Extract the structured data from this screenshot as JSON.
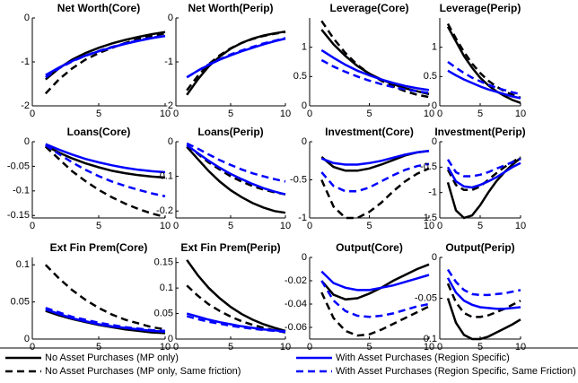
{
  "chart_data": [
    {
      "type": "line",
      "title": "Net Worth(Core)",
      "x": [
        1,
        2,
        3,
        4,
        5,
        6,
        7,
        8,
        9,
        10
      ],
      "xlim": [
        0,
        10
      ],
      "xticks": [
        0,
        5,
        10
      ],
      "ylim": [
        -2,
        0
      ],
      "yticks": [
        -2,
        -1,
        0
      ],
      "series": [
        {
          "values": [
            -1.4,
            -1.15,
            -0.95,
            -0.8,
            -0.68,
            -0.58,
            -0.5,
            -0.43,
            -0.37,
            -0.32
          ]
        },
        {
          "values": [
            -1.72,
            -1.4,
            -1.15,
            -0.95,
            -0.8,
            -0.68,
            -0.57,
            -0.48,
            -0.41,
            -0.35
          ]
        },
        {
          "values": [
            -1.3,
            -1.13,
            -0.98,
            -0.86,
            -0.76,
            -0.67,
            -0.59,
            -0.52,
            -0.46,
            -0.41
          ]
        },
        {
          "values": [
            -1.35,
            -1.15,
            -0.99,
            -0.86,
            -0.75,
            -0.66,
            -0.58,
            -0.51,
            -0.45,
            -0.4
          ]
        }
      ]
    },
    {
      "type": "line",
      "title": "Net Worth(Perip)",
      "x": [
        1,
        2,
        3,
        4,
        5,
        6,
        7,
        8,
        9,
        10
      ],
      "xlim": [
        0,
        10
      ],
      "xticks": [
        0,
        5,
        10
      ],
      "ylim": [
        -2,
        0
      ],
      "yticks": [
        -2,
        -1,
        0
      ],
      "series": [
        {
          "values": [
            -1.75,
            -1.4,
            -1.1,
            -0.88,
            -0.7,
            -0.57,
            -0.47,
            -0.4,
            -0.35,
            -0.31
          ]
        },
        {
          "values": [
            -1.65,
            -1.32,
            -1.05,
            -0.85,
            -0.69,
            -0.57,
            -0.48,
            -0.41,
            -0.36,
            -0.32
          ]
        },
        {
          "values": [
            -1.35,
            -1.2,
            -1.07,
            -0.95,
            -0.85,
            -0.76,
            -0.68,
            -0.6,
            -0.53,
            -0.47
          ]
        },
        {
          "values": [
            -1.35,
            -1.2,
            -1.06,
            -0.94,
            -0.83,
            -0.74,
            -0.66,
            -0.58,
            -0.52,
            -0.46
          ]
        }
      ]
    },
    {
      "type": "line",
      "title": "Leverage(Core)",
      "x": [
        1,
        2,
        3,
        4,
        5,
        6,
        7,
        8,
        9,
        10
      ],
      "xlim": [
        0,
        10
      ],
      "xticks": [
        0,
        5,
        10
      ],
      "ylim": [
        0,
        1.5
      ],
      "yticks": [
        0,
        0.5,
        1
      ],
      "series": [
        {
          "values": [
            1.3,
            1.05,
            0.85,
            0.68,
            0.55,
            0.45,
            0.37,
            0.3,
            0.25,
            0.2
          ]
        },
        {
          "values": [
            1.45,
            1.15,
            0.9,
            0.7,
            0.55,
            0.43,
            0.33,
            0.25,
            0.19,
            0.15
          ]
        },
        {
          "values": [
            0.95,
            0.82,
            0.7,
            0.6,
            0.52,
            0.45,
            0.39,
            0.34,
            0.3,
            0.27
          ]
        },
        {
          "values": [
            0.78,
            0.67,
            0.58,
            0.5,
            0.43,
            0.37,
            0.32,
            0.28,
            0.25,
            0.22
          ]
        }
      ]
    },
    {
      "type": "line",
      "title": "Leverage(Perip)",
      "x": [
        1,
        2,
        3,
        4,
        5,
        6,
        7,
        8,
        9,
        10
      ],
      "xlim": [
        0,
        10
      ],
      "xticks": [
        0,
        5,
        10
      ],
      "ylim": [
        0,
        1.5
      ],
      "yticks": [
        0,
        0.5,
        1
      ],
      "series": [
        {
          "values": [
            1.35,
            1.1,
            0.85,
            0.65,
            0.48,
            0.35,
            0.25,
            0.17,
            0.1,
            0.05
          ]
        },
        {
          "values": [
            1.4,
            1.15,
            0.92,
            0.72,
            0.56,
            0.43,
            0.33,
            0.25,
            0.19,
            0.14
          ]
        },
        {
          "values": [
            0.6,
            0.52,
            0.45,
            0.39,
            0.33,
            0.28,
            0.24,
            0.2,
            0.16,
            0.13
          ]
        },
        {
          "values": [
            0.75,
            0.65,
            0.56,
            0.48,
            0.42,
            0.36,
            0.31,
            0.27,
            0.23,
            0.2
          ]
        }
      ]
    },
    {
      "type": "line",
      "title": "Loans(Core)",
      "x": [
        1,
        2,
        3,
        4,
        5,
        6,
        7,
        8,
        9,
        10
      ],
      "xlim": [
        0,
        10
      ],
      "xticks": [
        0,
        5,
        10
      ],
      "ylim": [
        -0.155,
        0
      ],
      "yticks": [
        -0.15,
        -0.1,
        -0.05,
        0
      ],
      "series": [
        {
          "values": [
            -0.008,
            -0.022,
            -0.034,
            -0.044,
            -0.052,
            -0.059,
            -0.064,
            -0.068,
            -0.071,
            -0.073
          ]
        },
        {
          "values": [
            -0.01,
            -0.035,
            -0.06,
            -0.08,
            -0.098,
            -0.113,
            -0.126,
            -0.137,
            -0.146,
            -0.153
          ]
        },
        {
          "values": [
            -0.005,
            -0.016,
            -0.026,
            -0.035,
            -0.042,
            -0.048,
            -0.053,
            -0.057,
            -0.06,
            -0.062
          ]
        },
        {
          "values": [
            -0.007,
            -0.025,
            -0.042,
            -0.057,
            -0.07,
            -0.081,
            -0.09,
            -0.098,
            -0.105,
            -0.111
          ]
        }
      ]
    },
    {
      "type": "line",
      "title": "Loans(Perip)",
      "x": [
        1,
        2,
        3,
        4,
        5,
        6,
        7,
        8,
        9,
        10
      ],
      "xlim": [
        0,
        10
      ],
      "xticks": [
        0,
        5,
        10
      ],
      "ylim": [
        -0.22,
        0
      ],
      "yticks": [
        -0.2,
        -0.1,
        0
      ],
      "series": [
        {
          "values": [
            -0.015,
            -0.05,
            -0.085,
            -0.115,
            -0.14,
            -0.16,
            -0.177,
            -0.19,
            -0.2,
            -0.205
          ]
        },
        {
          "values": [
            -0.01,
            -0.035,
            -0.06,
            -0.08,
            -0.1,
            -0.115,
            -0.128,
            -0.138,
            -0.146,
            -0.152
          ]
        },
        {
          "values": [
            -0.01,
            -0.033,
            -0.055,
            -0.075,
            -0.093,
            -0.108,
            -0.122,
            -0.134,
            -0.144,
            -0.152
          ]
        },
        {
          "values": [
            -0.005,
            -0.02,
            -0.037,
            -0.053,
            -0.067,
            -0.08,
            -0.091,
            -0.1,
            -0.108,
            -0.115
          ]
        }
      ]
    },
    {
      "type": "line",
      "title": "Investment(Core)",
      "x": [
        1,
        2,
        3,
        4,
        5,
        6,
        7,
        8,
        9,
        10
      ],
      "xlim": [
        0,
        10
      ],
      "xticks": [
        0,
        5,
        10
      ],
      "ylim": [
        -1,
        0
      ],
      "yticks": [
        -1,
        -0.5,
        0
      ],
      "series": [
        {
          "values": [
            -0.2,
            -0.33,
            -0.38,
            -0.38,
            -0.35,
            -0.3,
            -0.24,
            -0.18,
            -0.14,
            -0.12
          ]
        },
        {
          "values": [
            -0.5,
            -0.85,
            -1.0,
            -1.0,
            -0.92,
            -0.8,
            -0.65,
            -0.52,
            -0.42,
            -0.35
          ]
        },
        {
          "values": [
            -0.22,
            -0.28,
            -0.3,
            -0.3,
            -0.28,
            -0.25,
            -0.21,
            -0.17,
            -0.14,
            -0.12
          ]
        },
        {
          "values": [
            -0.4,
            -0.58,
            -0.65,
            -0.65,
            -0.6,
            -0.52,
            -0.44,
            -0.37,
            -0.32,
            -0.29
          ]
        }
      ]
    },
    {
      "type": "line",
      "title": "Investment(Perip)",
      "x": [
        1,
        2,
        3,
        4,
        5,
        6,
        7,
        8,
        9,
        10
      ],
      "xlim": [
        0,
        10
      ],
      "xticks": [
        0,
        5,
        10
      ],
      "ylim": [
        -1.5,
        0
      ],
      "yticks": [
        -1.5,
        -1,
        -0.5,
        0
      ],
      "series": [
        {
          "values": [
            -0.8,
            -1.35,
            -1.5,
            -1.45,
            -1.25,
            -1.0,
            -0.78,
            -0.6,
            -0.45,
            -0.32
          ]
        },
        {
          "values": [
            -0.55,
            -0.85,
            -0.95,
            -0.95,
            -0.88,
            -0.75,
            -0.62,
            -0.5,
            -0.4,
            -0.3
          ]
        },
        {
          "values": [
            -0.5,
            -0.78,
            -0.88,
            -0.9,
            -0.85,
            -0.78,
            -0.7,
            -0.6,
            -0.5,
            -0.42
          ]
        },
        {
          "values": [
            -0.35,
            -0.6,
            -0.68,
            -0.68,
            -0.65,
            -0.6,
            -0.53,
            -0.47,
            -0.4,
            -0.34
          ]
        }
      ]
    },
    {
      "type": "line",
      "title": "Ext Fin Prem(Core)",
      "x": [
        1,
        2,
        3,
        4,
        5,
        6,
        7,
        8,
        9,
        10
      ],
      "xlim": [
        0,
        10
      ],
      "xticks": [
        0,
        5,
        10
      ],
      "ylim": [
        0,
        0.11
      ],
      "yticks": [
        0,
        0.05,
        0.1
      ],
      "series": [
        {
          "values": [
            0.038,
            0.032,
            0.027,
            0.023,
            0.019,
            0.016,
            0.013,
            0.011,
            0.009,
            0.008
          ]
        },
        {
          "values": [
            0.1,
            0.082,
            0.066,
            0.053,
            0.042,
            0.033,
            0.026,
            0.021,
            0.016,
            0.013
          ]
        },
        {
          "values": [
            0.04,
            0.034,
            0.028,
            0.024,
            0.02,
            0.017,
            0.015,
            0.013,
            0.011,
            0.01
          ]
        },
        {
          "values": [
            0.042,
            0.036,
            0.03,
            0.026,
            0.022,
            0.019,
            0.016,
            0.014,
            0.012,
            0.011
          ]
        }
      ]
    },
    {
      "type": "line",
      "title": "Ext Fin Prem(Perip)",
      "x": [
        1,
        2,
        3,
        4,
        5,
        6,
        7,
        8,
        9,
        10
      ],
      "xlim": [
        0,
        10
      ],
      "xticks": [
        0,
        5,
        10
      ],
      "ylim": [
        0,
        0.16
      ],
      "yticks": [
        0,
        0.05,
        0.1,
        0.15
      ],
      "series": [
        {
          "values": [
            0.155,
            0.125,
            0.1,
            0.08,
            0.063,
            0.049,
            0.038,
            0.029,
            0.022,
            0.016
          ]
        },
        {
          "values": [
            0.105,
            0.085,
            0.068,
            0.055,
            0.044,
            0.035,
            0.028,
            0.022,
            0.017,
            0.013
          ]
        },
        {
          "values": [
            0.05,
            0.044,
            0.038,
            0.033,
            0.029,
            0.025,
            0.022,
            0.019,
            0.017,
            0.015
          ]
        },
        {
          "values": [
            0.045,
            0.039,
            0.034,
            0.03,
            0.026,
            0.023,
            0.02,
            0.018,
            0.016,
            0.014
          ]
        }
      ]
    },
    {
      "type": "line",
      "title": "Output(Core)",
      "x": [
        1,
        2,
        3,
        4,
        5,
        6,
        7,
        8,
        9,
        10
      ],
      "xlim": [
        0,
        10
      ],
      "xticks": [
        0,
        5,
        10
      ],
      "ylim": [
        -0.07,
        0
      ],
      "yticks": [
        -0.06,
        -0.04,
        -0.02,
        0
      ],
      "series": [
        {
          "values": [
            -0.02,
            -0.032,
            -0.036,
            -0.035,
            -0.031,
            -0.026,
            -0.02,
            -0.015,
            -0.01,
            -0.006
          ]
        },
        {
          "values": [
            -0.03,
            -0.052,
            -0.063,
            -0.067,
            -0.066,
            -0.062,
            -0.057,
            -0.052,
            -0.047,
            -0.042
          ]
        },
        {
          "values": [
            -0.012,
            -0.022,
            -0.026,
            -0.028,
            -0.028,
            -0.026,
            -0.024,
            -0.021,
            -0.018,
            -0.015
          ]
        },
        {
          "values": [
            -0.02,
            -0.037,
            -0.046,
            -0.05,
            -0.051,
            -0.05,
            -0.048,
            -0.045,
            -0.042,
            -0.04
          ]
        }
      ]
    },
    {
      "type": "line",
      "title": "Output(Perip)",
      "x": [
        1,
        2,
        3,
        4,
        5,
        6,
        7,
        8,
        9,
        10
      ],
      "xlim": [
        0,
        10
      ],
      "xticks": [
        0,
        5,
        10
      ],
      "ylim": [
        -0.1,
        0
      ],
      "yticks": [
        -0.1,
        -0.05,
        0
      ],
      "series": [
        {
          "values": [
            -0.05,
            -0.08,
            -0.095,
            -0.1,
            -0.1,
            -0.097,
            -0.092,
            -0.087,
            -0.082,
            -0.076
          ]
        },
        {
          "values": [
            -0.032,
            -0.055,
            -0.068,
            -0.073,
            -0.073,
            -0.071,
            -0.067,
            -0.063,
            -0.058,
            -0.053
          ]
        },
        {
          "values": [
            -0.025,
            -0.043,
            -0.053,
            -0.058,
            -0.061,
            -0.062,
            -0.063,
            -0.063,
            -0.062,
            -0.061
          ]
        },
        {
          "values": [
            -0.015,
            -0.03,
            -0.04,
            -0.045,
            -0.046,
            -0.046,
            -0.045,
            -0.044,
            -0.042,
            -0.04
          ]
        }
      ]
    }
  ],
  "legend": {
    "entries": [
      {
        "name": "No Asset Purchases (MP only)",
        "color": "#000000",
        "style": "solid"
      },
      {
        "name": "No Asset Purchases (MP only, Same friction)",
        "color": "#000000",
        "style": "dashed"
      },
      {
        "name": "With Asset Purchases (Region Specific)",
        "color": "#0000ff",
        "style": "solid"
      },
      {
        "name": "With Asset Purchases (Region Specific, Same Friction)",
        "color": "#0000ff",
        "style": "dashed"
      }
    ]
  }
}
